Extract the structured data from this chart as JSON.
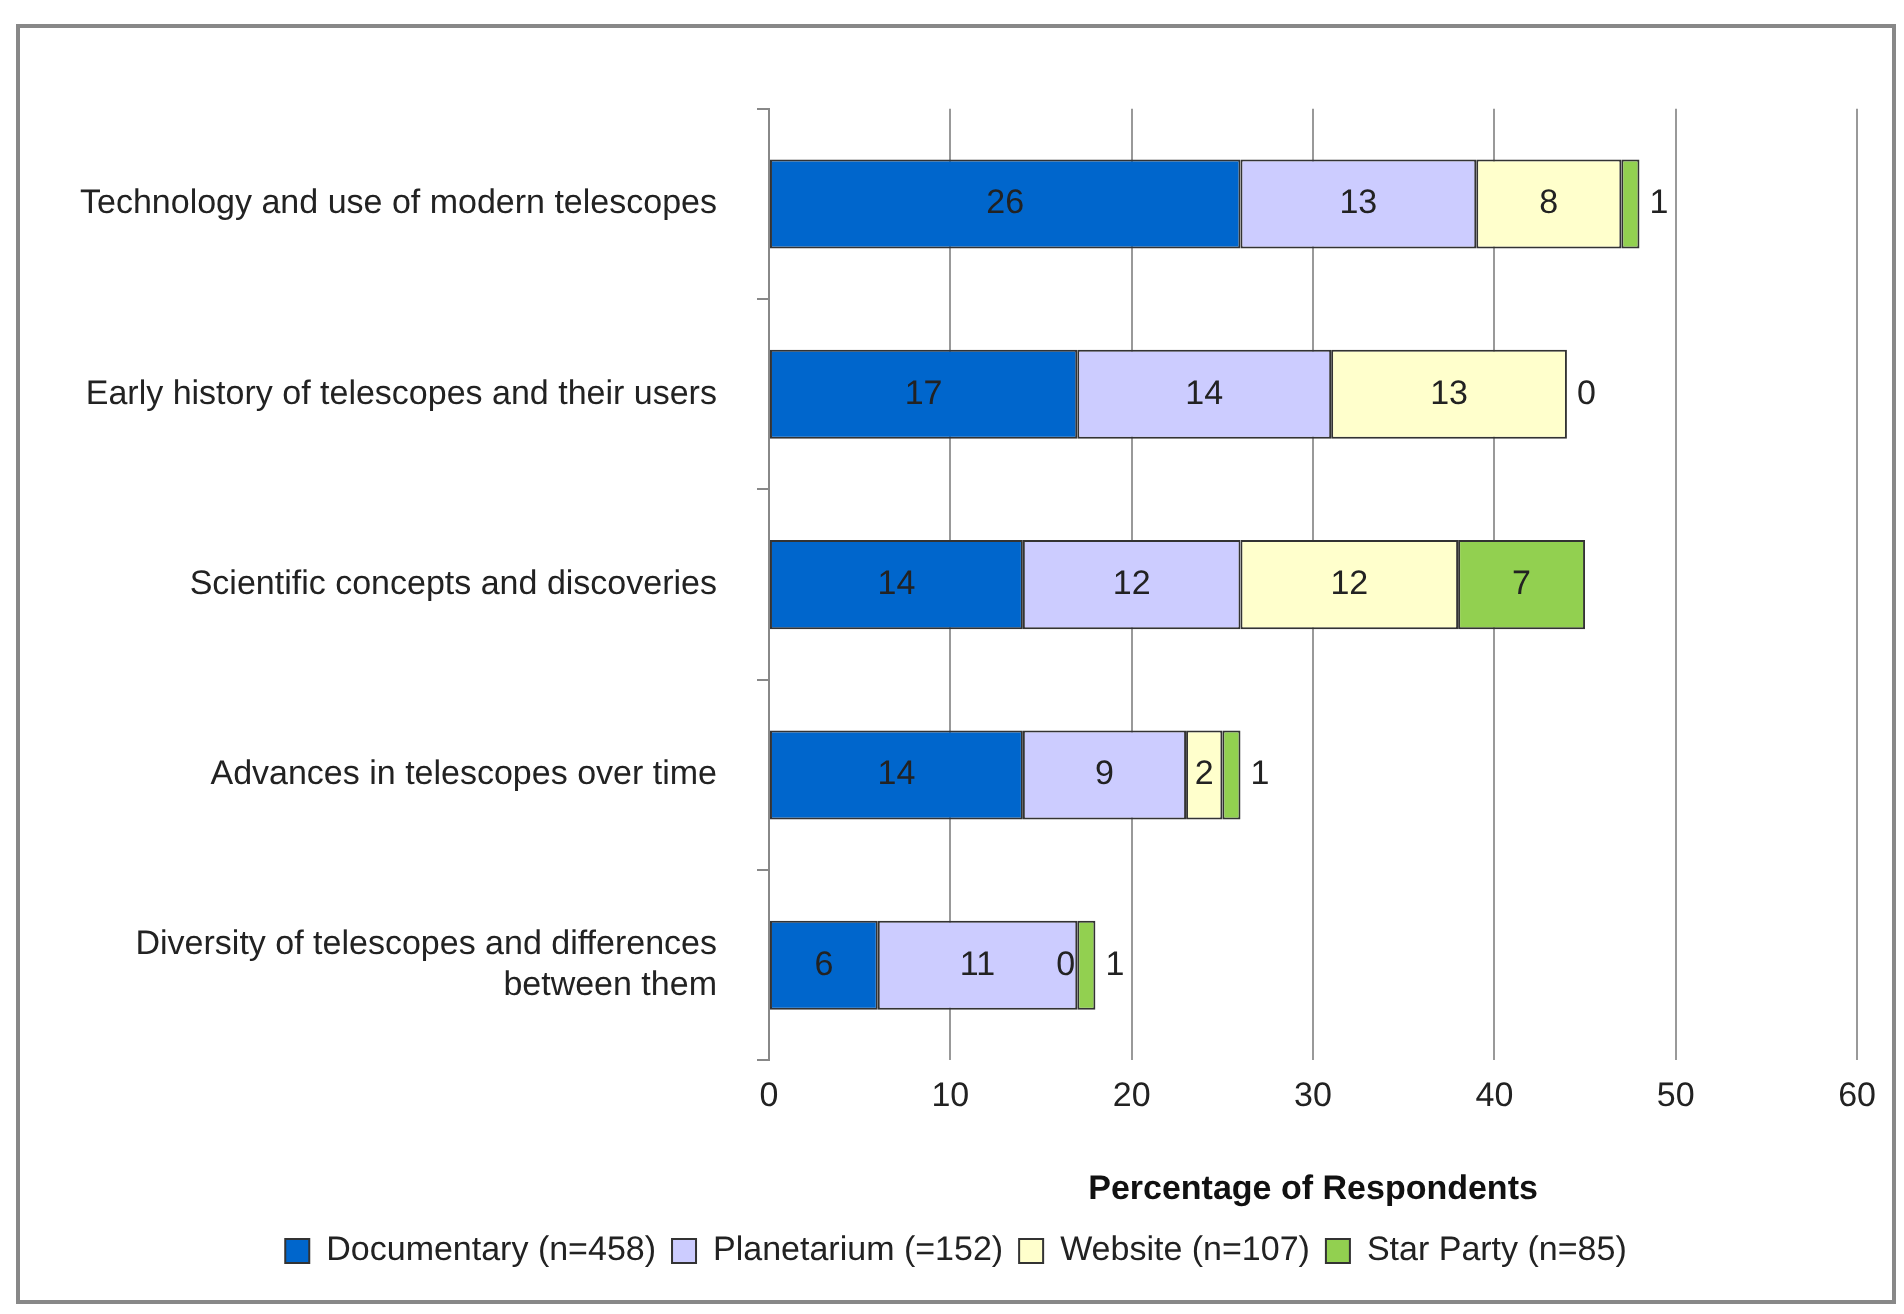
{
  "chart_data": {
    "type": "bar",
    "orientation": "horizontal",
    "stacked": true,
    "xlabel": "Percentage of Respondents",
    "categories": [
      "Technology and use of modern telescopes",
      "Early history of telescopes and their users",
      "Scientific concepts and discoveries",
      "Advances in telescopes over time",
      "Diversity of telescopes and differences between them"
    ],
    "series": [
      {
        "name": "Documentary (n=458)",
        "color": "#0066cc",
        "values": [
          26,
          17,
          14,
          14,
          6
        ]
      },
      {
        "name": "Planetarium (=152)",
        "color": "#ccccff",
        "values": [
          13,
          14,
          12,
          9,
          11
        ]
      },
      {
        "name": "Website (n=107)",
        "color": "#ffffcc",
        "values": [
          8,
          13,
          12,
          2,
          0
        ]
      },
      {
        "name": "Star Party (n=85)",
        "color": "#92d050",
        "values": [
          1,
          0,
          7,
          1,
          1
        ]
      }
    ],
    "xlim": [
      0,
      60
    ],
    "xticks": [
      0,
      10,
      20,
      30,
      40,
      50,
      60
    ],
    "grid": "x",
    "legend": "bottom",
    "data_labels": true
  }
}
